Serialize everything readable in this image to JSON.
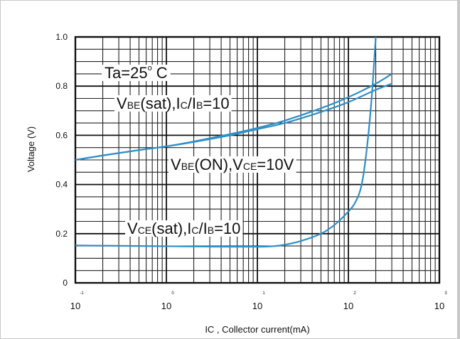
{
  "chart_data": {
    "type": "line",
    "title": "",
    "xlabel": "IC ,  Collector current(mA)",
    "ylabel": "Voltage (V)",
    "x_scale": "log",
    "xlim": [
      0.1,
      1000
    ],
    "ylim": [
      0,
      1.0
    ],
    "grid": true,
    "x_tick_labels": [
      {
        "base": "10",
        "exp": "-1"
      },
      {
        "base": "10",
        "exp": "0"
      },
      {
        "base": "10",
        "exp": "1"
      },
      {
        "base": "10",
        "exp": "2"
      },
      {
        "base": "10",
        "exp": "3"
      }
    ],
    "y_tick_labels": [
      "0",
      "0.2",
      "0.4",
      "0.6",
      "0.8",
      "1.0"
    ],
    "annotations": {
      "temp": {
        "main": "Ta=25",
        "deg": "o",
        "unit": "C"
      },
      "vbe_sat": [
        [
          "V",
          "big"
        ],
        [
          "BE",
          "small"
        ],
        [
          "(sat),I",
          "big"
        ],
        [
          "C",
          "small"
        ],
        [
          "/I",
          "big"
        ],
        [
          "B",
          "small"
        ],
        [
          "=10",
          "big"
        ]
      ],
      "vbe_on": [
        [
          "V",
          "big"
        ],
        [
          "BE",
          "small"
        ],
        [
          "(ON),V",
          "big"
        ],
        [
          "CE",
          "small"
        ],
        [
          "=10V",
          "big"
        ]
      ],
      "vce_sat": [
        [
          "V",
          "big"
        ],
        [
          "CE",
          "small"
        ],
        [
          "(sat),I",
          "big"
        ],
        [
          "C",
          "small"
        ],
        [
          "/I",
          "big"
        ],
        [
          "B",
          "small"
        ],
        [
          "=10",
          "big"
        ]
      ]
    },
    "curve_color": "#2e8fc6",
    "series": [
      {
        "x": [
          0.1,
          0.2,
          0.5,
          1,
          2,
          5,
          10,
          20,
          50,
          100,
          200,
          300
        ],
        "y": [
          0.5,
          0.518,
          0.54,
          0.555,
          0.575,
          0.605,
          0.63,
          0.66,
          0.71,
          0.755,
          0.81,
          0.85
        ]
      },
      {
        "x": [
          0.1,
          0.2,
          0.5,
          1,
          2,
          5,
          10,
          20,
          50,
          100,
          200,
          300
        ],
        "y": [
          0.5,
          0.518,
          0.54,
          0.555,
          0.573,
          0.6,
          0.625,
          0.65,
          0.695,
          0.735,
          0.785,
          0.81
        ]
      },
      {
        "x": [
          0.1,
          0.5,
          1,
          2,
          5,
          10,
          15,
          20,
          30,
          50,
          70,
          100,
          120,
          140,
          160,
          180,
          200
        ],
        "y": [
          0.152,
          0.15,
          0.149,
          0.148,
          0.147,
          0.147,
          0.149,
          0.155,
          0.17,
          0.2,
          0.235,
          0.29,
          0.33,
          0.4,
          0.55,
          0.75,
          1.0
        ]
      }
    ]
  }
}
